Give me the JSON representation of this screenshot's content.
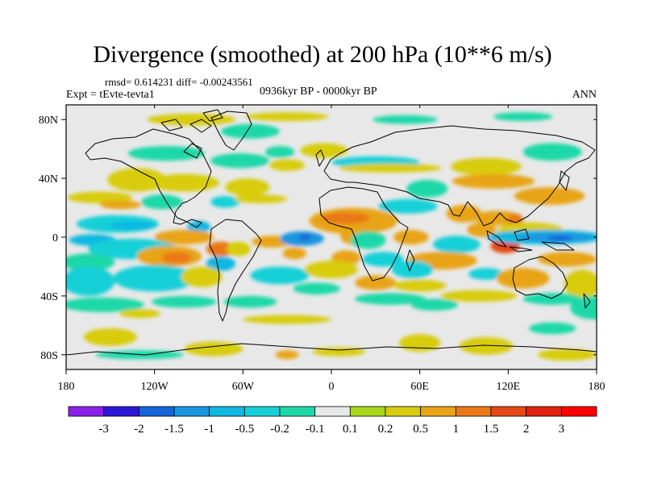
{
  "chart_data": {
    "type": "heatmap",
    "title": "Divergence (smoothed) at 200 hPa (10**6 m/s)",
    "stats": {
      "rmsd": "0.614231",
      "diff": "-0.00243561"
    },
    "experiment": "tEvte-tevta1",
    "period": "0936kyr BP - 0000kyr BP",
    "season": "ANN",
    "projection": "cylindrical equidistant",
    "lon_range": [
      -180,
      180
    ],
    "lat_range": [
      -90,
      90
    ],
    "x_ticks": [
      {
        "value": -180,
        "label": "180"
      },
      {
        "value": -120,
        "label": "120W"
      },
      {
        "value": -60,
        "label": "60W"
      },
      {
        "value": 0,
        "label": "0"
      },
      {
        "value": 60,
        "label": "60E"
      },
      {
        "value": 120,
        "label": "120E"
      },
      {
        "value": 180,
        "label": "180"
      }
    ],
    "y_ticks": [
      {
        "value": 80,
        "label": "80N"
      },
      {
        "value": 40,
        "label": "40N"
      },
      {
        "value": 0,
        "label": "0"
      },
      {
        "value": -40,
        "label": "40S"
      },
      {
        "value": -80,
        "label": "80S"
      }
    ],
    "colorbar": {
      "levels": [
        "-3",
        "-2",
        "-1.5",
        "-1",
        "-0.5",
        "-0.2",
        "-0.1",
        "0.1",
        "0.2",
        "0.5",
        "1",
        "1.5",
        "2",
        "3"
      ],
      "colors": [
        "#8b20e8",
        "#2e18d8",
        "#1565d8",
        "#1b95e0",
        "#10b8e2",
        "#18d0d8",
        "#1ed8a8",
        "#e8e8e8",
        "#a8d81c",
        "#d8cc10",
        "#e8a416",
        "#ea7818",
        "#e44a18",
        "#e22210",
        "#ff0000"
      ]
    },
    "anomaly_cells": [
      {
        "lon": -157,
        "lat": 27,
        "rx": 22,
        "ry": 4,
        "value": 0.2
      },
      {
        "lon": -143,
        "lat": 22,
        "rx": 14,
        "ry": 3,
        "value": 0.5
      },
      {
        "lon": -115,
        "lat": 24,
        "rx": 14,
        "ry": 5,
        "value": -0.2
      },
      {
        "lon": -72,
        "lat": 24,
        "rx": 10,
        "ry": 4,
        "value": -0.5
      },
      {
        "lon": -100,
        "lat": 37,
        "rx": 24,
        "ry": 6,
        "value": 0.2
      },
      {
        "lon": -57,
        "lat": 34,
        "rx": 15,
        "ry": 6,
        "value": 0.2
      },
      {
        "lon": -48,
        "lat": 26,
        "rx": 18,
        "ry": 3,
        "value": 0.2
      },
      {
        "lon": -132,
        "lat": 39,
        "rx": 20,
        "ry": 8,
        "value": 0.2
      },
      {
        "lon": -112,
        "lat": 57,
        "rx": 26,
        "ry": 5,
        "value": -0.2
      },
      {
        "lon": -62,
        "lat": 52,
        "rx": 20,
        "ry": 5,
        "value": -0.2
      },
      {
        "lon": -30,
        "lat": 49,
        "rx": 12,
        "ry": 4,
        "value": 0.2
      },
      {
        "lon": -5,
        "lat": 59,
        "rx": 16,
        "ry": 5,
        "value": 0.2
      },
      {
        "lon": -35,
        "lat": 58,
        "rx": 10,
        "ry": 4,
        "value": -0.2
      },
      {
        "lon": -55,
        "lat": 72,
        "rx": 20,
        "ry": 5,
        "value": -0.2
      },
      {
        "lon": -95,
        "lat": 80,
        "rx": 30,
        "ry": 4,
        "value": 0.2
      },
      {
        "lon": -30,
        "lat": 82,
        "rx": 28,
        "ry": 3,
        "value": 0.2
      },
      {
        "lon": 50,
        "lat": 80,
        "rx": 22,
        "ry": 3,
        "value": -0.2
      },
      {
        "lon": 130,
        "lat": 82,
        "rx": 20,
        "ry": 3,
        "value": -0.2
      },
      {
        "lon": 30,
        "lat": 51,
        "rx": 30,
        "ry": 4,
        "value": -0.5
      },
      {
        "lon": 40,
        "lat": 47,
        "rx": 35,
        "ry": 3,
        "value": 0.2
      },
      {
        "lon": 150,
        "lat": 58,
        "rx": 20,
        "ry": 6,
        "value": -0.2
      },
      {
        "lon": 105,
        "lat": 48,
        "rx": 24,
        "ry": 6,
        "value": 0.2
      },
      {
        "lon": 110,
        "lat": 38,
        "rx": 28,
        "ry": 5,
        "value": 0.5
      },
      {
        "lon": 148,
        "lat": 28,
        "rx": 24,
        "ry": 6,
        "value": 0.5
      },
      {
        "lon": 65,
        "lat": 33,
        "rx": 14,
        "ry": 6,
        "value": -0.2
      },
      {
        "lon": 52,
        "lat": 21,
        "rx": 20,
        "ry": 5,
        "value": -0.5
      },
      {
        "lon": 15,
        "lat": 11,
        "rx": 30,
        "ry": 9,
        "value": 0.5
      },
      {
        "lon": 10,
        "lat": 13,
        "rx": 16,
        "ry": 4,
        "value": 1
      },
      {
        "lon": 90,
        "lat": 16,
        "rx": 12,
        "ry": 6,
        "value": 0.5
      },
      {
        "lon": 113,
        "lat": 13,
        "rx": 16,
        "ry": 5,
        "value": 0.5
      },
      {
        "lon": 125,
        "lat": 12,
        "rx": 5,
        "ry": 4,
        "value": 1
      },
      {
        "lon": 135,
        "lat": 5,
        "rx": 22,
        "ry": 5,
        "value": 0.2
      },
      {
        "lon": -145,
        "lat": 9,
        "rx": 28,
        "ry": 6,
        "value": -0.5
      },
      {
        "lon": -135,
        "lat": 8,
        "rx": 15,
        "ry": 3,
        "value": -1
      },
      {
        "lon": -90,
        "lat": 7,
        "rx": 8,
        "ry": 4,
        "value": -1
      },
      {
        "lon": -162,
        "lat": -2,
        "rx": 16,
        "ry": 4,
        "value": -1
      },
      {
        "lon": -100,
        "lat": 0,
        "rx": 20,
        "ry": 5,
        "value": 0.5
      },
      {
        "lon": -75,
        "lat": -8,
        "rx": 10,
        "ry": 5,
        "value": 1
      },
      {
        "lon": -63,
        "lat": -8,
        "rx": 8,
        "ry": 5,
        "value": 0.2
      },
      {
        "lon": -40,
        "lat": -3,
        "rx": 14,
        "ry": 4,
        "value": 0.5
      },
      {
        "lon": -20,
        "lat": -1,
        "rx": 15,
        "ry": 5,
        "value": -1.5
      },
      {
        "lon": -18,
        "lat": 0,
        "rx": 4,
        "ry": 2,
        "value": -2
      },
      {
        "lon": 14,
        "lat": 1,
        "rx": 8,
        "ry": 6,
        "value": 0.5
      },
      {
        "lon": 25,
        "lat": -2,
        "rx": 12,
        "ry": 6,
        "value": -0.2
      },
      {
        "lon": 54,
        "lat": 0,
        "rx": 12,
        "ry": 5,
        "value": 0.5
      },
      {
        "lon": 85,
        "lat": -5,
        "rx": 16,
        "ry": 6,
        "value": -0.5
      },
      {
        "lon": 102,
        "lat": 5,
        "rx": 10,
        "ry": 5,
        "value": 0.5
      },
      {
        "lon": 118,
        "lat": -6,
        "rx": 10,
        "ry": 5,
        "value": 1.5
      },
      {
        "lon": 145,
        "lat": 0,
        "rx": 40,
        "ry": 5,
        "value": -1
      },
      {
        "lon": 152,
        "lat": 0,
        "rx": 26,
        "ry": 3,
        "value": -1.5
      },
      {
        "lon": 155,
        "lat": -1,
        "rx": 8,
        "ry": 2,
        "value": -2
      },
      {
        "lon": -135,
        "lat": -8,
        "rx": 30,
        "ry": 7,
        "value": -0.5
      },
      {
        "lon": -110,
        "lat": -13,
        "rx": 22,
        "ry": 7,
        "value": 0.5
      },
      {
        "lon": -105,
        "lat": -14,
        "rx": 10,
        "ry": 4,
        "value": 1
      },
      {
        "lon": -75,
        "lat": -18,
        "rx": 10,
        "ry": 5,
        "value": -1
      },
      {
        "lon": -25,
        "lat": -11,
        "rx": 8,
        "ry": 4,
        "value": 0.5
      },
      {
        "lon": 10,
        "lat": -14,
        "rx": 10,
        "ry": 5,
        "value": 0.5
      },
      {
        "lon": 35,
        "lat": -15,
        "rx": 14,
        "ry": 5,
        "value": -0.5
      },
      {
        "lon": 75,
        "lat": -16,
        "rx": 24,
        "ry": 6,
        "value": 0.5
      },
      {
        "lon": 105,
        "lat": -25,
        "rx": 12,
        "ry": 4,
        "value": -0.5
      },
      {
        "lon": 160,
        "lat": -15,
        "rx": 20,
        "ry": 5,
        "value": 0.5
      },
      {
        "lon": 170,
        "lat": -32,
        "rx": 12,
        "ry": 10,
        "value": 0.2
      },
      {
        "lon": -165,
        "lat": -17,
        "rx": 18,
        "ry": 6,
        "value": -0.2
      },
      {
        "lon": -165,
        "lat": -30,
        "rx": 18,
        "ry": 10,
        "value": -0.5
      },
      {
        "lon": -120,
        "lat": -28,
        "rx": 28,
        "ry": 9,
        "value": -0.5
      },
      {
        "lon": -88,
        "lat": -27,
        "rx": 14,
        "ry": 7,
        "value": 0.2
      },
      {
        "lon": -35,
        "lat": -26,
        "rx": 20,
        "ry": 6,
        "value": -0.5
      },
      {
        "lon": 0,
        "lat": -22,
        "rx": 18,
        "ry": 6,
        "value": 0.2
      },
      {
        "lon": 30,
        "lat": -31,
        "rx": 14,
        "ry": 5,
        "value": 0.5
      },
      {
        "lon": 55,
        "lat": -22,
        "rx": 14,
        "ry": 6,
        "value": -0.5
      },
      {
        "lon": 60,
        "lat": -33,
        "rx": 18,
        "ry": 4,
        "value": 0.2
      },
      {
        "lon": 130,
        "lat": -28,
        "rx": 18,
        "ry": 7,
        "value": 0.5
      },
      {
        "lon": 178,
        "lat": -48,
        "rx": 16,
        "ry": 8,
        "value": -0.2
      },
      {
        "lon": -155,
        "lat": -46,
        "rx": 28,
        "ry": 5,
        "value": -0.2
      },
      {
        "lon": -100,
        "lat": -44,
        "rx": 22,
        "ry": 4,
        "value": -0.2
      },
      {
        "lon": -55,
        "lat": -44,
        "rx": 18,
        "ry": 4,
        "value": -0.2
      },
      {
        "lon": -10,
        "lat": -35,
        "rx": 16,
        "ry": 4,
        "value": -0.2
      },
      {
        "lon": 40,
        "lat": -42,
        "rx": 24,
        "ry": 4,
        "value": -0.2
      },
      {
        "lon": 70,
        "lat": -46,
        "rx": 16,
        "ry": 4,
        "value": -0.2
      },
      {
        "lon": 100,
        "lat": -40,
        "rx": 26,
        "ry": 4,
        "value": 0.2
      },
      {
        "lon": 150,
        "lat": -42,
        "rx": 20,
        "ry": 4,
        "value": -0.2
      },
      {
        "lon": -130,
        "lat": -52,
        "rx": 14,
        "ry": 3,
        "value": 0.2
      },
      {
        "lon": -30,
        "lat": -56,
        "rx": 30,
        "ry": 3,
        "value": 0.2
      },
      {
        "lon": 150,
        "lat": -62,
        "rx": 16,
        "ry": 4,
        "value": -0.2
      },
      {
        "lon": -150,
        "lat": -68,
        "rx": 18,
        "ry": 6,
        "value": 0.2
      },
      {
        "lon": -80,
        "lat": -76,
        "rx": 20,
        "ry": 5,
        "value": 0.2
      },
      {
        "lon": -30,
        "lat": -80,
        "rx": 8,
        "ry": 3,
        "value": 0.5
      },
      {
        "lon": 5,
        "lat": -78,
        "rx": 18,
        "ry": 3,
        "value": 0.2
      },
      {
        "lon": 60,
        "lat": -72,
        "rx": 14,
        "ry": 6,
        "value": 0.2
      },
      {
        "lon": 105,
        "lat": -74,
        "rx": 18,
        "ry": 6,
        "value": 0.2
      },
      {
        "lon": 160,
        "lat": -80,
        "rx": 20,
        "ry": 4,
        "value": 0.2
      },
      {
        "lon": -130,
        "lat": -80,
        "rx": 30,
        "ry": 3,
        "value": -0.2
      }
    ]
  }
}
